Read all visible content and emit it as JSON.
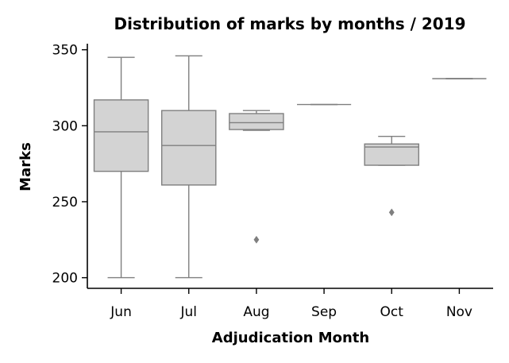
{
  "chart_data": {
    "type": "box",
    "title": "Distribution of marks by months / 2019",
    "xlabel": "Adjudication Month",
    "ylabel": "Marks",
    "ylim": [
      193,
      354
    ],
    "yticks": [
      200,
      250,
      300,
      350
    ],
    "grid": false,
    "legend": "none",
    "box_color": "#d3d3d3",
    "line_color": "#7f7f7f",
    "categories": [
      "Jun",
      "Jul",
      "Aug",
      "Sep",
      "Oct",
      "Nov"
    ],
    "boxes": [
      {
        "min": 200,
        "q1": 270,
        "median": 296,
        "q3": 317,
        "max": 345,
        "outliers": []
      },
      {
        "min": 200,
        "q1": 261,
        "median": 287,
        "q3": 310,
        "max": 346,
        "outliers": []
      },
      {
        "min": 297,
        "q1": 297.5,
        "median": 302,
        "q3": 308,
        "max": 310,
        "outliers": [
          225
        ]
      },
      {
        "min": 314,
        "q1": 314,
        "median": 314,
        "q3": 314,
        "max": 314,
        "outliers": []
      },
      {
        "min": 274,
        "q1": 274,
        "median": 286,
        "q3": 288,
        "max": 293,
        "outliers": [
          243
        ]
      },
      {
        "min": 331,
        "q1": 331,
        "median": 331,
        "q3": 331,
        "max": 331,
        "outliers": []
      }
    ]
  }
}
